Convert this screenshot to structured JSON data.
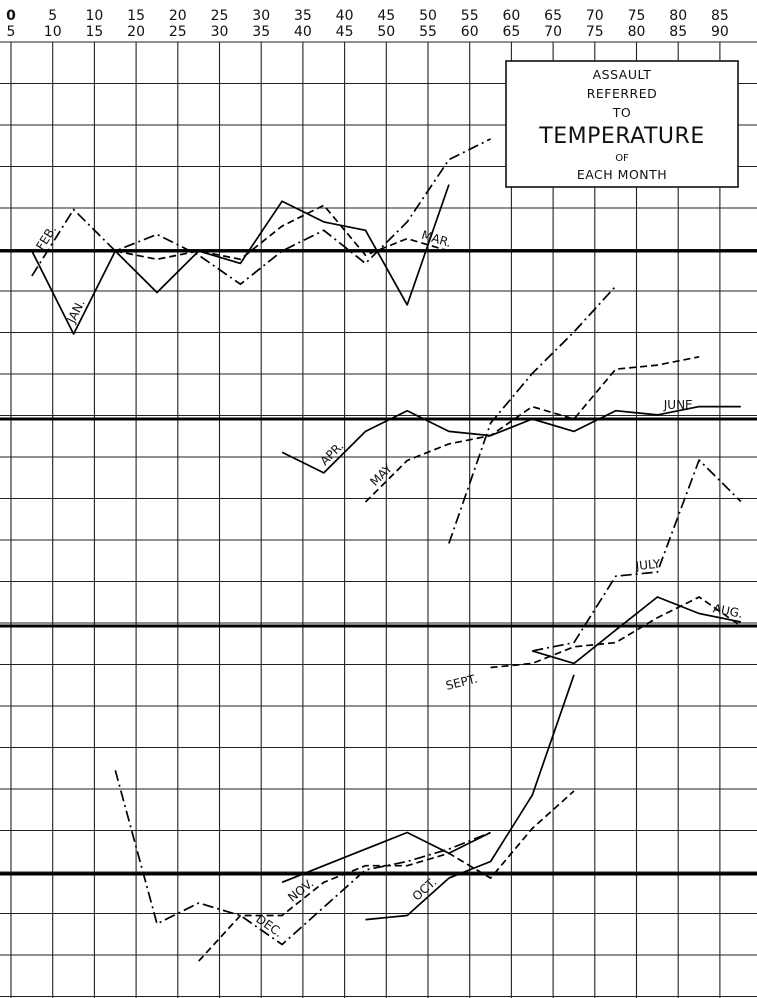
{
  "chart_data": {
    "type": "line",
    "title": {
      "line1": "ASSAULT",
      "line2": "REFERRED",
      "line3": "TO",
      "line4": "TEMPERATURE",
      "line5": "OF",
      "line6": "EACH MONTH"
    },
    "x_ticks": [
      {
        "top": "0",
        "bottom": "5"
      },
      {
        "top": "5",
        "bottom": "10"
      },
      {
        "top": "10",
        "bottom": "15"
      },
      {
        "top": "15",
        "bottom": "20"
      },
      {
        "top": "20",
        "bottom": "25"
      },
      {
        "top": "25",
        "bottom": "30"
      },
      {
        "top": "30",
        "bottom": "35"
      },
      {
        "top": "35",
        "bottom": "40"
      },
      {
        "top": "40",
        "bottom": "45"
      },
      {
        "top": "45",
        "bottom": "50"
      },
      {
        "top": "50",
        "bottom": "55"
      },
      {
        "top": "55",
        "bottom": "60"
      },
      {
        "top": "60",
        "bottom": "65"
      },
      {
        "top": "65",
        "bottom": "70"
      },
      {
        "top": "70",
        "bottom": "75"
      },
      {
        "top": "75",
        "bottom": "80"
      },
      {
        "top": "80",
        "bottom": "85"
      },
      {
        "top": "85",
        "bottom": "90"
      }
    ],
    "grid": true,
    "series": [
      {
        "name": "JAN.",
        "style": "solid",
        "label_at": 8,
        "points": [
          [
            2.5,
            0.0
          ],
          [
            7.5,
            -2.0
          ],
          [
            12.5,
            0.0
          ],
          [
            17.5,
            -1.0
          ],
          [
            22.5,
            0.0
          ],
          [
            27.5,
            -0.3
          ],
          [
            32.5,
            1.2
          ],
          [
            37.5,
            0.7
          ],
          [
            42.5,
            0.5
          ],
          [
            47.5,
            -1.3
          ],
          [
            52.5,
            1.6
          ]
        ]
      },
      {
        "name": "FEB.",
        "style": "dashdot",
        "label_at": 4.2,
        "points": [
          [
            2.5,
            -0.6
          ],
          [
            7.5,
            1.0
          ],
          [
            12.5,
            0.0
          ],
          [
            17.5,
            0.4
          ],
          [
            22.5,
            -0.1
          ],
          [
            27.5,
            -0.8
          ],
          [
            32.5,
            0.0
          ],
          [
            37.5,
            0.5
          ],
          [
            42.5,
            -0.3
          ],
          [
            47.5,
            0.7
          ],
          [
            52.5,
            2.2
          ],
          [
            57.5,
            2.7
          ]
        ]
      },
      {
        "name": "MAR.",
        "style": "dashed",
        "label_at": 49,
        "points": [
          [
            12.5,
            0.0
          ],
          [
            17.5,
            -0.2
          ],
          [
            22.5,
            0.0
          ],
          [
            27.5,
            -0.2
          ],
          [
            32.5,
            0.6
          ],
          [
            37.5,
            1.1
          ],
          [
            42.5,
            -0.1
          ],
          [
            47.5,
            0.3
          ],
          [
            52.5,
            0.0
          ]
        ]
      },
      {
        "name": "APR.",
        "style": "solid",
        "label_at": 38,
        "points": [
          [
            32.5,
            -0.8
          ],
          [
            37.5,
            -1.3
          ],
          [
            42.5,
            -0.3
          ],
          [
            47.5,
            0.2
          ],
          [
            52.5,
            -0.3
          ],
          [
            57.5,
            -0.4
          ],
          [
            62.5,
            0.0
          ],
          [
            67.5,
            -0.3
          ],
          [
            72.5,
            0.2
          ],
          [
            77.5,
            0.1
          ],
          [
            82.5,
            0.3
          ],
          [
            87.5,
            0.3
          ]
        ]
      },
      {
        "name": "MAY",
        "style": "dashed",
        "label_at": 44,
        "points": [
          [
            42.5,
            -2.0
          ],
          [
            47.5,
            -1.0
          ],
          [
            52.5,
            -0.6
          ],
          [
            57.5,
            -0.4
          ],
          [
            62.5,
            0.3
          ],
          [
            67.5,
            0.0
          ],
          [
            72.5,
            1.2
          ],
          [
            77.5,
            1.3
          ],
          [
            82.5,
            1.5
          ]
        ]
      },
      {
        "name": "JUNE",
        "style": "dashdot",
        "points": [
          [
            52.5,
            -3.0
          ],
          [
            57.5,
            -0.1
          ],
          [
            62.5,
            1.1
          ],
          [
            67.5,
            2.1
          ],
          [
            72.5,
            3.2
          ]
        ]
      },
      {
        "name": "JULY",
        "style": "dashdot",
        "label_at": 75,
        "points": [
          [
            62.5,
            -0.6
          ],
          [
            67.5,
            -0.4
          ],
          [
            72.5,
            1.2
          ],
          [
            77.5,
            1.3
          ],
          [
            82.5,
            4.0
          ],
          [
            87.5,
            3.0
          ]
        ]
      },
      {
        "name": "AUG.",
        "style": "solid",
        "label_at": 84,
        "points": [
          [
            62.5,
            -0.6
          ],
          [
            67.5,
            -0.9
          ],
          [
            72.5,
            -0.1
          ],
          [
            77.5,
            0.7
          ],
          [
            82.5,
            0.3
          ],
          [
            87.5,
            0.1
          ]
        ]
      },
      {
        "name": "SEPT.",
        "style": "dashed",
        "points": [
          [
            57.5,
            -1.0
          ],
          [
            62.5,
            -0.9
          ],
          [
            67.5,
            -0.5
          ],
          [
            72.5,
            -0.4
          ],
          [
            77.5,
            0.2
          ],
          [
            82.5,
            0.7
          ],
          [
            87.5,
            0.0
          ]
        ]
      },
      {
        "name": "OCT.",
        "style": "solid",
        "label_at": 49,
        "points": [
          [
            42.5,
            -1.1
          ],
          [
            47.5,
            -1.0
          ],
          [
            52.5,
            -0.1
          ],
          [
            57.5,
            0.3
          ],
          [
            62.5,
            1.9
          ],
          [
            67.5,
            4.8
          ]
        ]
      },
      {
        "name": "NOV.",
        "style": "dashed",
        "label_at": 34,
        "points": [
          [
            22.5,
            -2.1
          ],
          [
            27.5,
            -1.0
          ],
          [
            32.5,
            -1.0
          ],
          [
            37.5,
            -0.2
          ],
          [
            42.5,
            0.2
          ],
          [
            47.5,
            0.2
          ],
          [
            52.5,
            0.5
          ],
          [
            57.5,
            -0.1
          ],
          [
            62.5,
            1.1
          ],
          [
            67.5,
            2.0
          ]
        ]
      },
      {
        "name": "DEC.",
        "style": "dashdot",
        "label_at": 29,
        "points": [
          [
            12.5,
            2.5
          ],
          [
            17.5,
            -1.2
          ],
          [
            22.5,
            -0.7
          ],
          [
            27.5,
            -1.0
          ],
          [
            32.5,
            -1.7
          ],
          [
            37.5,
            -0.8
          ],
          [
            42.5,
            0.1
          ],
          [
            47.5,
            0.3
          ],
          [
            52.5,
            0.6
          ],
          [
            57.5,
            1.0
          ]
        ]
      },
      {
        "name": "",
        "style": "solid",
        "points": [
          [
            32.5,
            -0.2
          ],
          [
            37.5,
            0.2
          ],
          [
            42.5,
            0.6
          ],
          [
            47.5,
            1.0
          ],
          [
            52.5,
            0.5
          ],
          [
            57.5,
            1.0
          ]
        ]
      }
    ]
  }
}
